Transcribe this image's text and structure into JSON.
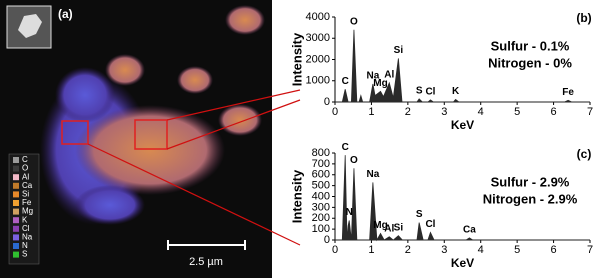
{
  "image_panel": {
    "label": "(a)",
    "scale_bar": "2.5 µm",
    "legend": [
      {
        "name": "C",
        "color": "#9a9a9a"
      },
      {
        "name": "O",
        "color": "#3a3a3a"
      },
      {
        "name": "Al",
        "color": "#f2b8c6"
      },
      {
        "name": "Ca",
        "color": "#c07a2a"
      },
      {
        "name": "Si",
        "color": "#e8892a"
      },
      {
        "name": "Fe",
        "color": "#f0a030"
      },
      {
        "name": "Mg",
        "color": "#d0a060"
      },
      {
        "name": "K",
        "color": "#b05fc0"
      },
      {
        "name": "Cl",
        "color": "#8a3fb0"
      },
      {
        "name": "Na",
        "color": "#7a5fe0"
      },
      {
        "name": "N",
        "color": "#2a6ad0"
      },
      {
        "name": "S",
        "color": "#30c030"
      }
    ]
  },
  "chart_data": [
    {
      "type": "line",
      "label": "(b)",
      "ylabel": "Intensity",
      "xlabel": "KeV",
      "color": "#2a2a2a",
      "x": [
        0,
        0.2,
        0.28,
        0.36,
        0.45,
        0.52,
        0.6,
        0.66,
        0.71,
        0.76,
        0.95,
        1.04,
        1.1,
        1.25,
        1.33,
        1.49,
        1.6,
        1.74,
        1.84,
        2.25,
        2.31,
        2.4,
        2.55,
        2.62,
        2.7,
        3.25,
        3.31,
        3.4,
        6.3,
        6.4,
        6.5,
        7
      ],
      "values": [
        0,
        0,
        600,
        0,
        0,
        3400,
        0,
        0,
        300,
        0,
        0,
        850,
        300,
        500,
        250,
        900,
        200,
        2050,
        0,
        0,
        150,
        0,
        0,
        100,
        0,
        0,
        120,
        0,
        0,
        80,
        0,
        0
      ],
      "xlim": [
        0,
        7
      ],
      "xticks": [
        0,
        1,
        2,
        3,
        4,
        5,
        6,
        7
      ],
      "ylim": [
        0,
        4000
      ],
      "yticks": [
        0,
        1000,
        2000,
        3000,
        4000
      ],
      "peak_labels": [
        {
          "text": "C",
          "x": 0.28
        },
        {
          "text": "O",
          "x": 0.52
        },
        {
          "text": "Na",
          "x": 1.04
        },
        {
          "text": "Mg",
          "x": 1.25
        },
        {
          "text": "Al",
          "x": 1.49
        },
        {
          "text": "Si",
          "x": 1.74
        },
        {
          "text": "S",
          "x": 2.31
        },
        {
          "text": "Cl",
          "x": 2.62
        },
        {
          "text": "K",
          "x": 3.31
        },
        {
          "text": "Fe",
          "x": 6.4
        }
      ],
      "annotations": [
        "Sulfur - 0.1%",
        "Nitrogen - 0%"
      ]
    },
    {
      "type": "line",
      "label": "(c)",
      "ylabel": "Intensity",
      "xlabel": "KeV",
      "color": "#2a2a2a",
      "x": [
        0,
        0.2,
        0.28,
        0.33,
        0.36,
        0.39,
        0.45,
        0.52,
        0.6,
        0.95,
        1.04,
        1.15,
        1.25,
        1.35,
        1.49,
        1.6,
        1.74,
        1.85,
        2.25,
        2.31,
        2.42,
        2.55,
        2.62,
        2.72,
        3.6,
        3.69,
        3.78,
        7
      ],
      "values": [
        0,
        0,
        780,
        0,
        130,
        180,
        0,
        660,
        0,
        0,
        530,
        0,
        60,
        0,
        30,
        0,
        40,
        0,
        0,
        160,
        0,
        0,
        70,
        0,
        0,
        20,
        0,
        0
      ],
      "xlim": [
        0,
        7
      ],
      "xticks": [
        0,
        1,
        2,
        3,
        4,
        5,
        6,
        7
      ],
      "ylim": [
        0,
        800
      ],
      "yticks": [
        0,
        100,
        200,
        300,
        400,
        500,
        600,
        700,
        800
      ],
      "peak_labels": [
        {
          "text": "C",
          "x": 0.28
        },
        {
          "text": "N",
          "x": 0.39
        },
        {
          "text": "O",
          "x": 0.52
        },
        {
          "text": "Na",
          "x": 1.04
        },
        {
          "text": "Mg",
          "x": 1.25
        },
        {
          "text": "Al",
          "x": 1.49
        },
        {
          "text": "Si",
          "x": 1.74
        },
        {
          "text": "S",
          "x": 2.31
        },
        {
          "text": "Cl",
          "x": 2.62
        },
        {
          "text": "Ca",
          "x": 3.69
        }
      ],
      "annotations": [
        "Sulfur - 2.9%",
        "Nitrogen - 2.9%"
      ]
    }
  ]
}
